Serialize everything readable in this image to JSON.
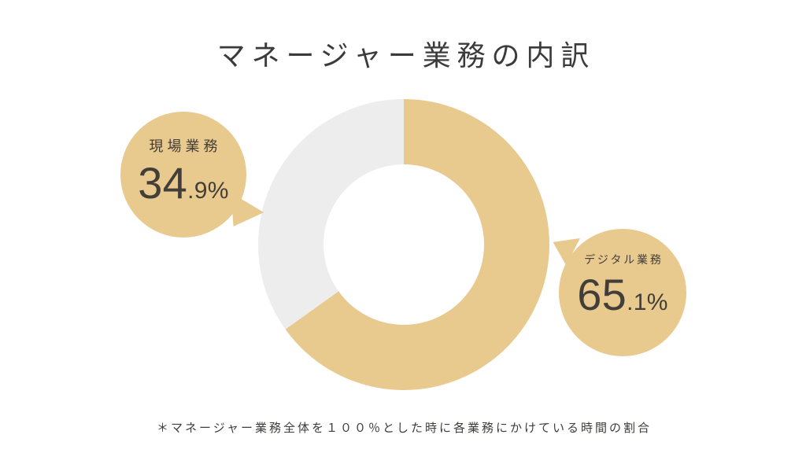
{
  "title": "マネージャー業務の内訳",
  "footnote": "＊マネージャー業務全体を１００％とした時に各業務にかけている時間の割合",
  "colors": {
    "background": "#ffffff",
    "accent": "#e8c98e",
    "muted_segment": "#ededee",
    "title_text": "#3b3b3b",
    "bubble_text": "#443e39",
    "footnote_text": "#3f3d3b"
  },
  "chart_data": {
    "type": "pie",
    "title": "マネージャー業務の内訳",
    "donut": true,
    "inner_radius_ratio": 0.55,
    "start_angle_deg": 0,
    "direction": "clockwise",
    "legend_position": "callout-bubbles",
    "segments": [
      {
        "label": "デジタル業務",
        "value": 65.1,
        "unit": "%",
        "color": "#e8c98e"
      },
      {
        "label": "現場業務",
        "value": 34.9,
        "unit": "%",
        "color": "#ededee"
      }
    ]
  },
  "callouts": {
    "field_work": {
      "label": "現場業務",
      "value_int": "34",
      "value_frac": ".9%",
      "value_text": "34.9%"
    },
    "digital_work": {
      "label": "デジタル業務",
      "value_int": "65",
      "value_frac": ".1%",
      "value_text": "65.1%"
    }
  }
}
